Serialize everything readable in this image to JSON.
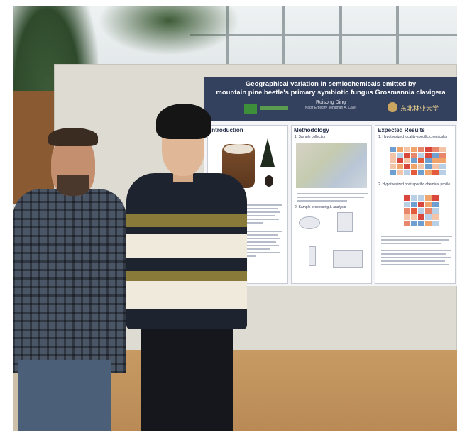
{
  "poster": {
    "title_line1": "Geographical variation in semiochemicals emitted by",
    "title_line2": "mountain pine beetle's primary symbiotic fungus Grosmannia clavigera",
    "author": "Ruisong Ding",
    "coauthors": "Nadir Erbilgin¹ Jonathan A. Cale¹",
    "right_logo_text": "东北林业大学",
    "sections": {
      "introduction": "Introduction",
      "methodology": "Methodology",
      "expected_results": "Expected Results"
    },
    "methodology_steps": [
      "1. Sample collection",
      "2. Sample processing & analysis"
    ],
    "expected_items": [
      "1. Hypothesized locality-specific chemical pr",
      "2. Hypothesized host-specific chemical profile"
    ]
  },
  "colors": {
    "poster_header": "#33405e",
    "board": "#dedbd2",
    "board_base": "#c79a63",
    "stripe_cream": "#efeadc",
    "stripe_olive": "#8a7a39",
    "stripe_dark": "#1d2430"
  }
}
